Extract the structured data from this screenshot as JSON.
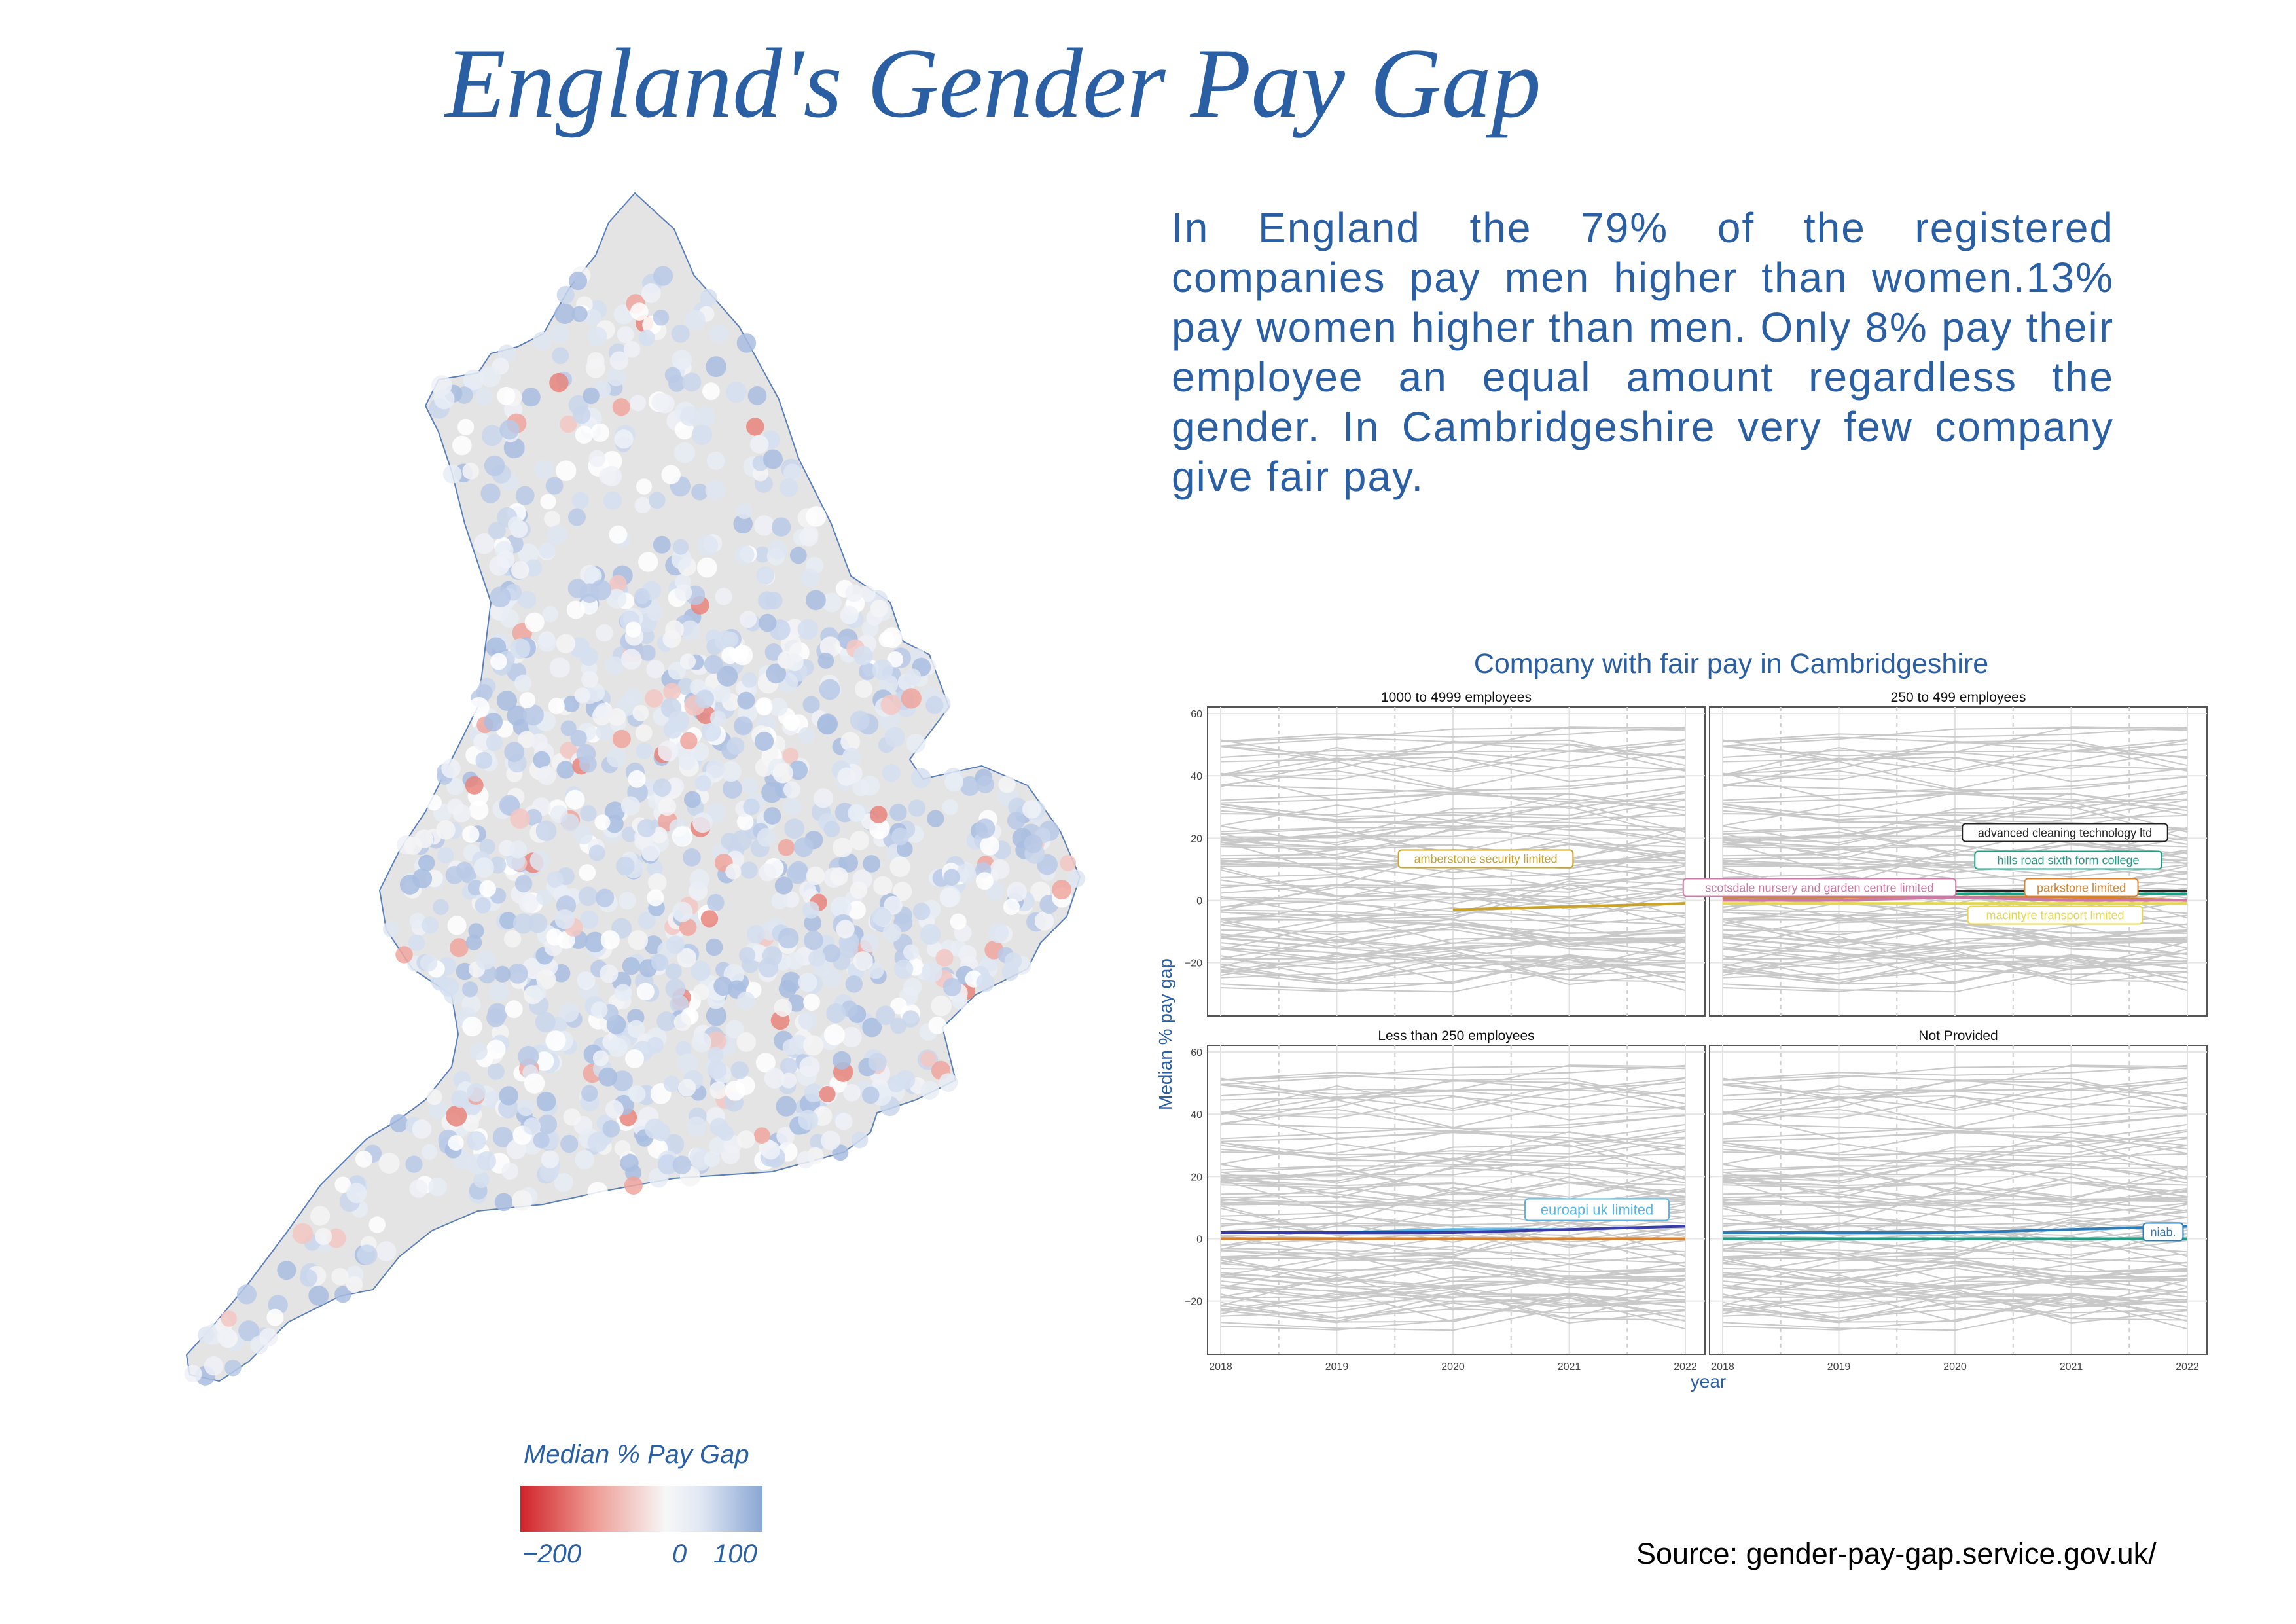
{
  "title": "England's Gender Pay Gap",
  "summary": "In England the 79% of the registered companies pay men higher than women.13% pay women higher than men. Only 8% pay their employee an equal amount regardless the gender. In Cambridgeshire very few company give fair pay.",
  "map": {
    "fill_color": "#e4e4e4",
    "outline_color": "#5b7fb8",
    "legend": {
      "title": "Median % Pay Gap",
      "labels": [
        "−200",
        "0",
        "100"
      ],
      "low_color": "#d1232a",
      "mid_color": "#f7f7f7",
      "high_color": "#8aa7d4"
    }
  },
  "source": "Source: gender-pay-gap.service.gov.uk/",
  "chart_data": {
    "type": "line",
    "title": "Company with fair pay in Cambridgeshire",
    "xlabel": "year",
    "ylabel": "Median % pay gap",
    "x": [
      2018,
      2019,
      2020,
      2021,
      2022
    ],
    "xticks": [
      "2018",
      "2019",
      "2020",
      "2021",
      "2022"
    ],
    "yticks": [
      "60",
      "40",
      "20",
      "0",
      "−20"
    ],
    "ylim": [
      -35,
      60
    ],
    "grid": true,
    "background_line_color": "#c9c9c9",
    "panels": [
      {
        "title": "1000 to 4999 employees",
        "highlight": [
          {
            "name": "amberstone security limited",
            "color": "#c9a227",
            "values": [
              null,
              null,
              -3,
              -2,
              -1
            ]
          }
        ]
      },
      {
        "title": "250 to 499 employees",
        "highlight": [
          {
            "name": "advanced cleaning technology ltd",
            "color": "#222222",
            "values": [
              1,
              2,
              3,
              3,
              3
            ]
          },
          {
            "name": "hills road sixth form college",
            "color": "#1e9e84",
            "values": [
              1,
              1,
              2,
              2,
              2
            ]
          },
          {
            "name": "parkstone limited",
            "color": "#d9822b",
            "values": [
              1,
              1,
              1,
              1,
              0
            ]
          },
          {
            "name": "scotsdale nursery and garden centre limited",
            "color": "#cc79a7",
            "values": [
              0,
              0,
              1,
              0,
              0
            ]
          },
          {
            "name": "macintyre transport limited",
            "color": "#e6d84a",
            "values": [
              -1,
              -1,
              -1,
              -1,
              -1
            ]
          }
        ]
      },
      {
        "title": "Less than 250 employees",
        "highlight": [
          {
            "name": "euroapi uk limited",
            "color": "#56b4e9",
            "values": [
              2,
              2,
              3,
              3,
              4
            ]
          },
          {
            "name": "",
            "color": "#3a3aa8",
            "values": [
              2,
              2,
              2,
              3,
              4
            ]
          },
          {
            "name": "",
            "color": "#d9822b",
            "values": [
              0,
              0,
              0,
              0,
              0
            ]
          }
        ]
      },
      {
        "title": "Not Provided",
        "highlight": [
          {
            "name": "niab.",
            "color": "#2b7bb9",
            "values": [
              2,
              2,
              2,
              3,
              4
            ]
          },
          {
            "name": "",
            "color": "#1e9e84",
            "values": [
              0,
              0,
              0,
              0,
              0
            ]
          }
        ]
      }
    ]
  }
}
